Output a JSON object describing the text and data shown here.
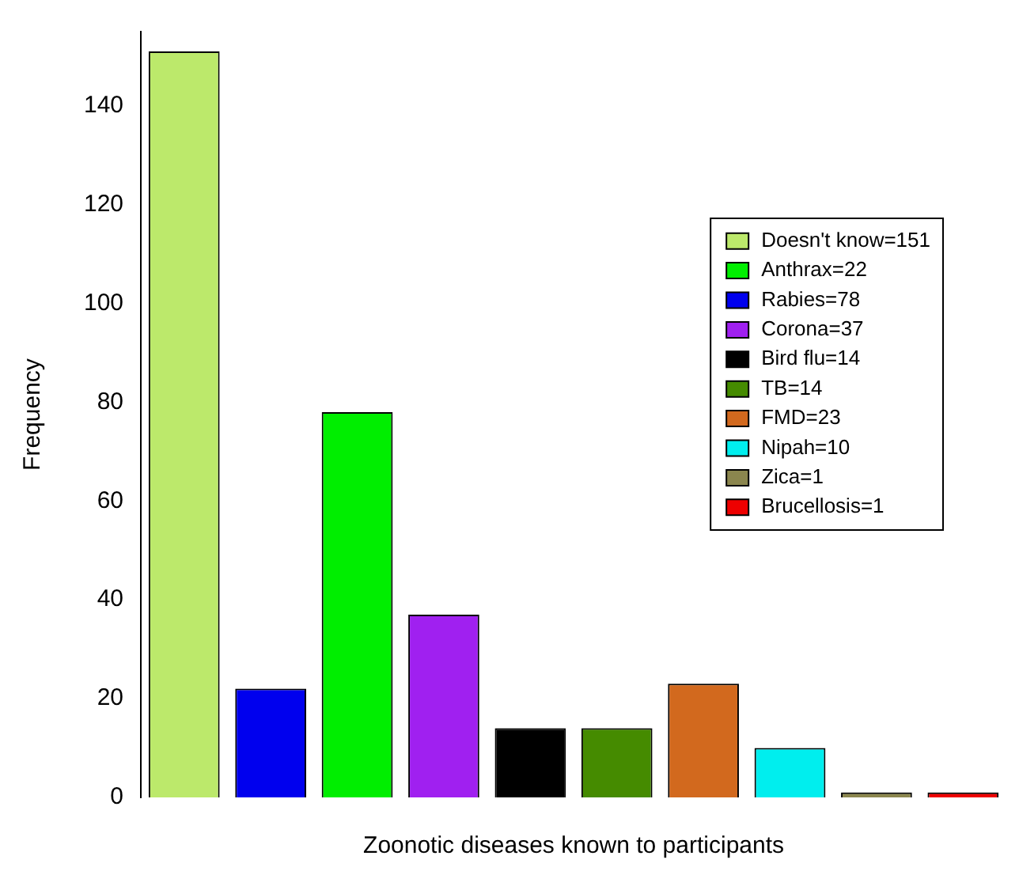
{
  "chart_data": {
    "type": "bar",
    "xlabel": "Zoonotic diseases known to participants",
    "ylabel": "Frequency",
    "categories": [
      null,
      null,
      null,
      null,
      null,
      null,
      null,
      null,
      null,
      null
    ],
    "stacked": true,
    "ylim": [
      0,
      155
    ],
    "yticks": [
      0,
      20,
      40,
      60,
      80,
      100,
      120,
      140
    ],
    "grid": false,
    "legend": "top right",
    "series": [
      {
        "name": "Doesn't know=151",
        "color": "#bce96b",
        "values": [
          151,
          null,
          null,
          null,
          null,
          null,
          null,
          null,
          null,
          null
        ]
      },
      {
        "name": "Anthrax=22",
        "color": "#00ee00",
        "values": [
          null,
          null,
          78,
          null,
          null,
          null,
          null,
          null,
          null,
          null
        ]
      },
      {
        "name": "Rabies=78",
        "color": "#0000ee",
        "values": [
          null,
          22,
          null,
          null,
          null,
          null,
          null,
          null,
          null,
          null
        ]
      },
      {
        "name": "Corona=37",
        "color": "#a020f0",
        "values": [
          null,
          null,
          null,
          37,
          null,
          null,
          null,
          null,
          null,
          null
        ]
      },
      {
        "name": "Bird flu=14",
        "color": "#000000",
        "values": [
          null,
          null,
          null,
          null,
          14,
          null,
          null,
          null,
          null,
          null
        ]
      },
      {
        "name": "TB=14",
        "color": "#458b00",
        "values": [
          null,
          null,
          null,
          null,
          null,
          14,
          null,
          null,
          null,
          null
        ]
      },
      {
        "name": "FMD=23",
        "color": "#d2691e",
        "values": [
          null,
          null,
          null,
          null,
          null,
          null,
          23,
          null,
          null,
          null
        ]
      },
      {
        "name": "Nipah=10",
        "color": "#00eeee",
        "values": [
          null,
          null,
          null,
          null,
          null,
          null,
          null,
          10,
          null,
          null
        ]
      },
      {
        "name": "Zica=1",
        "color": "#8b864e",
        "values": [
          null,
          null,
          null,
          null,
          null,
          null,
          null,
          null,
          1,
          null
        ]
      },
      {
        "name": "Brucellosis=1",
        "color": "#ee0000",
        "values": [
          null,
          null,
          null,
          null,
          null,
          null,
          null,
          null,
          null,
          1
        ]
      }
    ]
  }
}
